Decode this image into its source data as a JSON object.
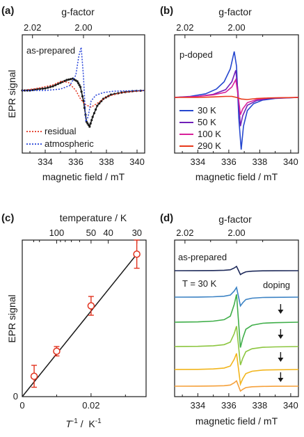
{
  "chart_data": [
    {
      "panel": "(a)",
      "type": "line",
      "xlabel": "magnetic field / mT",
      "ylabel": "EPR signal",
      "top_axis_label": "g-factor",
      "xlim": [
        332.5,
        340.5
      ],
      "xticks": [
        334,
        336,
        338,
        340
      ],
      "top_ticks": [
        {
          "g": 2.02,
          "label": "2.02"
        },
        {
          "g": 2.0,
          "label": "2.00"
        }
      ],
      "annotation": "as-prepared",
      "grid": false,
      "legend_position": "bottom-left",
      "series": [
        {
          "name": "",
          "color": "#1a1a1a",
          "style": "solid-with-dots",
          "x": [
            332.5,
            333,
            333.5,
            334,
            334.5,
            335,
            335.4,
            335.8,
            336.1,
            336.3,
            336.5,
            336.7,
            336.9,
            337.1,
            337.4,
            337.8,
            338.3,
            339,
            339.7,
            340.5
          ],
          "y": [
            0,
            0,
            0.02,
            0.03,
            0.06,
            0.11,
            0.15,
            0.17,
            0.13,
            0.05,
            -0.15,
            -0.45,
            -0.52,
            -0.38,
            -0.22,
            -0.12,
            -0.06,
            -0.03,
            -0.01,
            0
          ]
        },
        {
          "name": "residual",
          "color": "#e2321e",
          "style": "dotted",
          "x": [
            332.5,
            333.5,
            334.5,
            335,
            335.5,
            336,
            336.3,
            336.6,
            337,
            337.5,
            338,
            339,
            340.5
          ],
          "y": [
            0,
            0.03,
            0.08,
            0.13,
            0.12,
            0.0,
            -0.12,
            -0.2,
            -0.24,
            -0.17,
            -0.09,
            -0.03,
            0
          ]
        },
        {
          "name": "atmospheric",
          "color": "#2440d8",
          "style": "dotted",
          "x": [
            332.5,
            334,
            335,
            335.6,
            336,
            336.2,
            336.35,
            336.5,
            336.65,
            336.8,
            337,
            337.3,
            337.8,
            338.5,
            340.5
          ],
          "y": [
            0,
            0,
            0.02,
            0.07,
            0.22,
            0.5,
            0.62,
            0.2,
            -0.45,
            -0.38,
            -0.15,
            -0.07,
            -0.03,
            -0.01,
            0
          ]
        }
      ]
    },
    {
      "panel": "(b)",
      "type": "line",
      "xlabel": "magnetic field / mT",
      "ylabel": "",
      "top_axis_label": "g-factor",
      "xlim": [
        332.5,
        340.5
      ],
      "xticks": [
        334,
        336,
        338,
        340
      ],
      "top_ticks": [
        {
          "g": 2.02,
          "label": "2.02"
        },
        {
          "g": 2.0,
          "label": "2.00"
        }
      ],
      "annotation": "p-doped",
      "grid": false,
      "legend_position": "bottom-left",
      "series": [
        {
          "name": "30 K",
          "color": "#2547cf",
          "x": [
            332.5,
            333.5,
            334.5,
            335.2,
            335.7,
            336.1,
            336.35,
            336.5,
            336.65,
            336.8,
            336.95,
            337.2,
            337.6,
            338.2,
            339,
            340.5
          ],
          "y": [
            0,
            0.02,
            0.07,
            0.16,
            0.3,
            0.55,
            0.88,
            0.6,
            -0.4,
            -1.0,
            -0.55,
            -0.25,
            -0.12,
            -0.05,
            -0.02,
            0
          ]
        },
        {
          "name": "50 K",
          "color": "#7020b8",
          "x": [
            332.5,
            334,
            335,
            335.8,
            336.2,
            336.45,
            336.6,
            336.75,
            336.9,
            337.2,
            337.8,
            338.6,
            340.5
          ],
          "y": [
            0,
            0.02,
            0.06,
            0.15,
            0.3,
            0.52,
            0.1,
            -0.55,
            -0.35,
            -0.15,
            -0.06,
            -0.02,
            0
          ]
        },
        {
          "name": "100 K",
          "color": "#d8209a",
          "x": [
            332.5,
            334,
            335,
            335.8,
            336.2,
            336.45,
            336.6,
            336.75,
            336.9,
            337.2,
            337.8,
            338.6,
            340.5
          ],
          "y": [
            0,
            0.02,
            0.05,
            0.1,
            0.2,
            0.34,
            0.05,
            -0.33,
            -0.22,
            -0.1,
            -0.04,
            -0.01,
            0
          ]
        },
        {
          "name": "290 K",
          "color": "#e8391a",
          "x": [
            332.5,
            334,
            335,
            335.8,
            336.2,
            336.5,
            336.8,
            337.2,
            337.8,
            338.6,
            340.5
          ],
          "y": [
            0,
            0.0,
            0.01,
            0.02,
            0.02,
            0.0,
            -0.03,
            -0.04,
            -0.02,
            -0.01,
            0
          ]
        }
      ]
    },
    {
      "panel": "(c)",
      "type": "scatter",
      "xlabel": "T",
      "xlabel_sup": "-1",
      "xlabel_unit": " /  K",
      "xlabel_unit_sup": "-1",
      "ylabel": "EPR signal",
      "top_axis_label": "temperature / K",
      "xlim": [
        0,
        0.036
      ],
      "ylim": [
        0,
        1.0
      ],
      "xticks": [
        {
          "v": 0,
          "label": "0"
        },
        {
          "v": 0.02,
          "label": "0.02"
        }
      ],
      "yticks": [
        {
          "v": 0,
          "label": "0"
        }
      ],
      "top_ticks": [
        {
          "t": 100,
          "label": "100"
        },
        {
          "t": 50,
          "label": "50"
        },
        {
          "t": 40,
          "label": "40"
        },
        {
          "t": 30,
          "label": "30"
        }
      ],
      "grid": false,
      "points": [
        {
          "x": 0.00345,
          "y": 0.13,
          "err": 0.07
        },
        {
          "x": 0.01,
          "y": 0.29,
          "err": 0.03
        },
        {
          "x": 0.02,
          "y": 0.58,
          "err": 0.06
        },
        {
          "x": 0.0333,
          "y": 0.91,
          "err": 0.09
        }
      ],
      "fit_line": {
        "x": [
          0,
          0.0333
        ],
        "y": [
          0,
          0.91
        ]
      },
      "point_color": "#e2321e"
    },
    {
      "panel": "(d)",
      "type": "line",
      "xlabel": "magnetic field / mT",
      "ylabel": "",
      "top_axis_label": "g-factor",
      "xlim": [
        332.5,
        340.5
      ],
      "xticks": [
        334,
        336,
        338,
        340
      ],
      "top_ticks": [
        {
          "g": 2.02,
          "label": "2.02"
        },
        {
          "g": 2.0,
          "label": "2.00"
        }
      ],
      "annotations": [
        "as-prepared",
        "T = 30 K",
        "doping"
      ],
      "grid": false,
      "series": [
        {
          "name": "",
          "color": "#1e2a5a",
          "offset": 0,
          "amp": 0.4
        },
        {
          "name": "",
          "color": "#3b82c4",
          "offset": 1,
          "amp": 0.9
        },
        {
          "name": "",
          "color": "#3fae49",
          "offset": 2,
          "amp": 2.6
        },
        {
          "name": "",
          "color": "#8cc63f",
          "offset": 3,
          "amp": 1.9
        },
        {
          "name": "",
          "color": "#f2b51c",
          "offset": 4,
          "amp": 1.5
        },
        {
          "name": "",
          "color": "#f5a03a",
          "offset": 5,
          "amp": 0.5
        }
      ],
      "lineshape": {
        "x": [
          332.5,
          334,
          335,
          335.7,
          336.1,
          336.35,
          336.5,
          336.62,
          336.75,
          336.9,
          337.1,
          337.5,
          338.2,
          339,
          340.5
        ],
        "y": [
          0,
          0.005,
          0.02,
          0.05,
          0.12,
          0.35,
          0.55,
          0.05,
          -0.5,
          -0.32,
          -0.14,
          -0.06,
          -0.02,
          -0.01,
          0
        ]
      }
    }
  ]
}
